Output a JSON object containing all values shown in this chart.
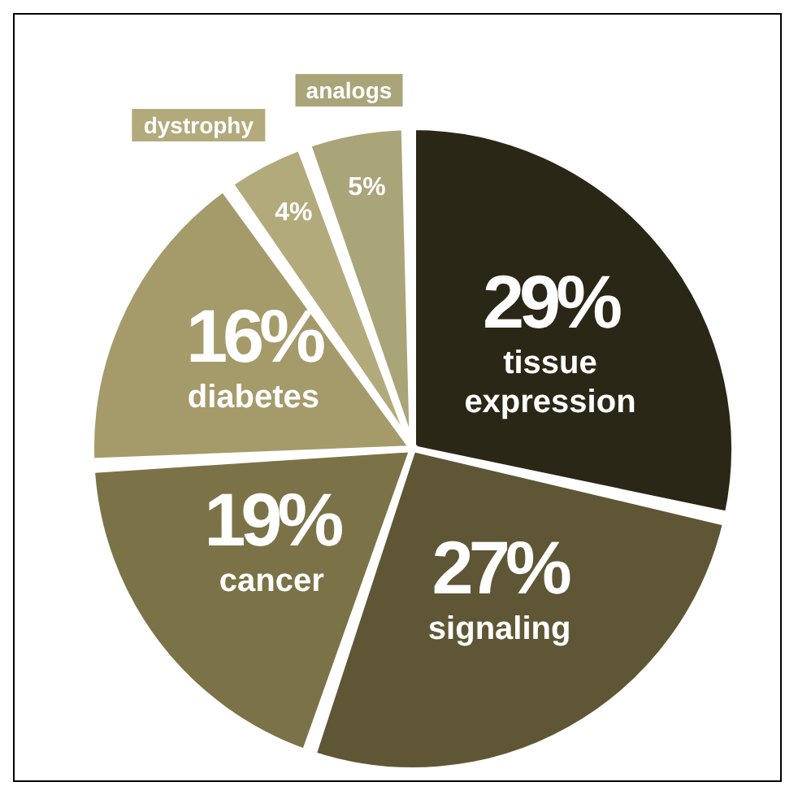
{
  "chart_data": {
    "type": "pie",
    "categories": [
      "tissue expression",
      "signaling",
      "cancer",
      "diabetes",
      "dystrophy",
      "analogs"
    ],
    "values": [
      29,
      27,
      19,
      16,
      4,
      5
    ],
    "colors": [
      "#2b2716",
      "#5f5636",
      "#7b7347",
      "#a59a6a",
      "#b3aa7c",
      "#aaa479"
    ],
    "value_labels": [
      "29%",
      "27%",
      "19%",
      "16%",
      "4%",
      "5%"
    ]
  }
}
